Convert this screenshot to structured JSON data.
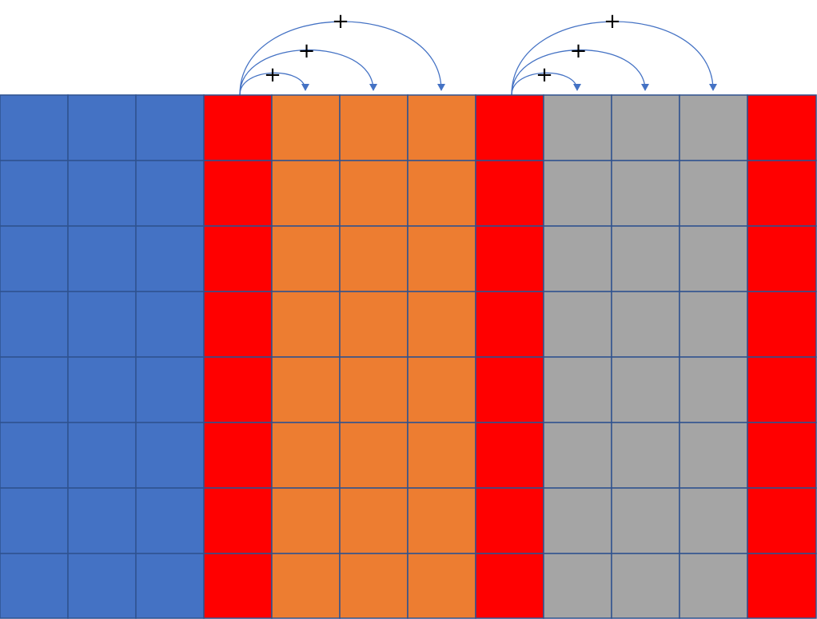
{
  "grid": {
    "rows": 8,
    "columns": [
      {
        "group": "blue",
        "color": "#4472c4"
      },
      {
        "group": "blue",
        "color": "#4472c4"
      },
      {
        "group": "blue",
        "color": "#4472c4"
      },
      {
        "group": "red",
        "color": "#ff0000"
      },
      {
        "group": "orange",
        "color": "#ed7d31"
      },
      {
        "group": "orange",
        "color": "#ed7d31"
      },
      {
        "group": "orange",
        "color": "#ed7d31"
      },
      {
        "group": "red",
        "color": "#ff0000"
      },
      {
        "group": "gray",
        "color": "#a5a5a5"
      },
      {
        "group": "gray",
        "color": "#a5a5a5"
      },
      {
        "group": "gray",
        "color": "#a5a5a5"
      },
      {
        "group": "red",
        "color": "#ff0000"
      }
    ],
    "border_color": "#2f528f"
  },
  "arrows": [
    {
      "from_column": 3,
      "to_column": 4,
      "label": "+"
    },
    {
      "from_column": 3,
      "to_column": 5,
      "label": "+"
    },
    {
      "from_column": 3,
      "to_column": 6,
      "label": "+"
    },
    {
      "from_column": 7,
      "to_column": 8,
      "label": "+"
    },
    {
      "from_column": 7,
      "to_column": 9,
      "label": "+"
    },
    {
      "from_column": 7,
      "to_column": 10,
      "label": "+"
    }
  ],
  "arrow_color": "#4472c4"
}
